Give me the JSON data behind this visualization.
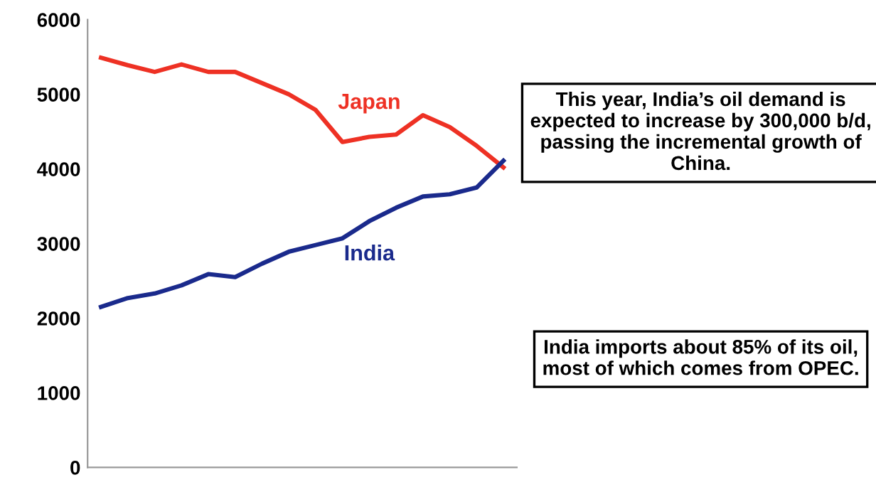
{
  "chart_data": {
    "type": "line",
    "categories": [
      null,
      null,
      null,
      null,
      null,
      null,
      null,
      null,
      null,
      null,
      null,
      null,
      null,
      null,
      null,
      null
    ],
    "series": [
      {
        "name": "Japan",
        "color": "#ee3124",
        "values": [
          5490,
          5390,
          5300,
          5400,
          5300,
          5300,
          5150,
          5000,
          4790,
          4360,
          4430,
          4460,
          4720,
          4560,
          4310,
          4020
        ]
      },
      {
        "name": "India",
        "color": "#1a2a8c",
        "values": [
          2150,
          2270,
          2330,
          2440,
          2590,
          2550,
          2730,
          2890,
          2980,
          3070,
          3300,
          3480,
          3630,
          3660,
          3750,
          4110
        ]
      }
    ],
    "ylim": [
      0,
      6000
    ],
    "yticks": [
      0,
      1000,
      2000,
      3000,
      4000,
      5000,
      6000
    ],
    "tick_labels": "y",
    "grid": false,
    "legend": false,
    "marker": "none",
    "line_style": "solid",
    "annotations": [
      "This year, India’s oil demand is expected to increase by 300,000 b/d, passing the incremental growth of China.",
      "India imports about 85% of its oil, most of which comes from OPEC."
    ]
  }
}
